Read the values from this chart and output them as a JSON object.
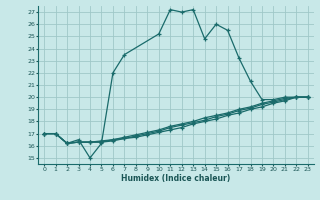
{
  "xlabel": "Humidex (Indice chaleur)",
  "bg_color": "#c8e8e8",
  "grid_color": "#a0c8c8",
  "line_color": "#1a6b6b",
  "xlim": [
    -0.5,
    23.5
  ],
  "ylim": [
    14.5,
    27.5
  ],
  "yticks": [
    15,
    16,
    17,
    18,
    19,
    20,
    21,
    22,
    23,
    24,
    25,
    26,
    27
  ],
  "xticks": [
    0,
    1,
    2,
    3,
    4,
    5,
    6,
    7,
    8,
    9,
    10,
    11,
    12,
    13,
    14,
    15,
    16,
    17,
    18,
    19,
    20,
    21,
    22,
    23
  ],
  "series1_x": [
    0,
    1,
    2,
    3,
    4,
    5,
    6,
    7,
    10,
    11,
    12,
    13,
    14,
    15,
    16,
    17,
    18,
    19,
    20,
    21,
    22,
    23
  ],
  "series1_y": [
    17.0,
    17.0,
    16.2,
    16.5,
    15.0,
    16.2,
    22.0,
    23.5,
    25.2,
    27.2,
    27.0,
    27.2,
    24.8,
    26.0,
    25.5,
    23.2,
    21.3,
    19.8,
    19.8,
    20.0,
    20.0,
    20.0
  ],
  "series2_x": [
    0,
    1,
    2,
    3,
    4,
    5,
    6,
    7,
    8,
    9,
    10,
    11,
    12,
    13,
    14,
    15,
    16,
    17,
    18,
    19,
    20,
    21,
    22,
    23
  ],
  "series2_y": [
    17.0,
    17.0,
    16.2,
    16.3,
    16.3,
    16.4,
    16.5,
    16.7,
    16.9,
    17.1,
    17.3,
    17.6,
    17.8,
    18.0,
    18.3,
    18.5,
    18.7,
    19.0,
    19.2,
    19.5,
    19.7,
    19.9,
    20.0,
    20.0
  ],
  "series3_x": [
    0,
    1,
    2,
    3,
    4,
    5,
    6,
    7,
    8,
    9,
    10,
    11,
    12,
    13,
    14,
    15,
    16,
    17,
    18,
    19,
    20,
    21,
    22,
    23
  ],
  "series3_y": [
    17.0,
    17.0,
    16.2,
    16.3,
    16.3,
    16.3,
    16.5,
    16.6,
    16.8,
    17.0,
    17.2,
    17.5,
    17.7,
    17.9,
    18.1,
    18.4,
    18.6,
    18.9,
    19.1,
    19.4,
    19.6,
    19.8,
    20.0,
    20.0
  ],
  "series4_x": [
    0,
    1,
    2,
    3,
    4,
    5,
    6,
    7,
    8,
    9,
    10,
    11,
    12,
    13,
    14,
    15,
    16,
    17,
    18,
    19,
    20,
    21,
    22,
    23
  ],
  "series4_y": [
    17.0,
    17.0,
    16.2,
    16.3,
    16.3,
    16.3,
    16.4,
    16.6,
    16.7,
    16.9,
    17.1,
    17.3,
    17.5,
    17.8,
    18.0,
    18.2,
    18.5,
    18.7,
    19.0,
    19.2,
    19.5,
    19.7,
    20.0,
    20.0
  ]
}
